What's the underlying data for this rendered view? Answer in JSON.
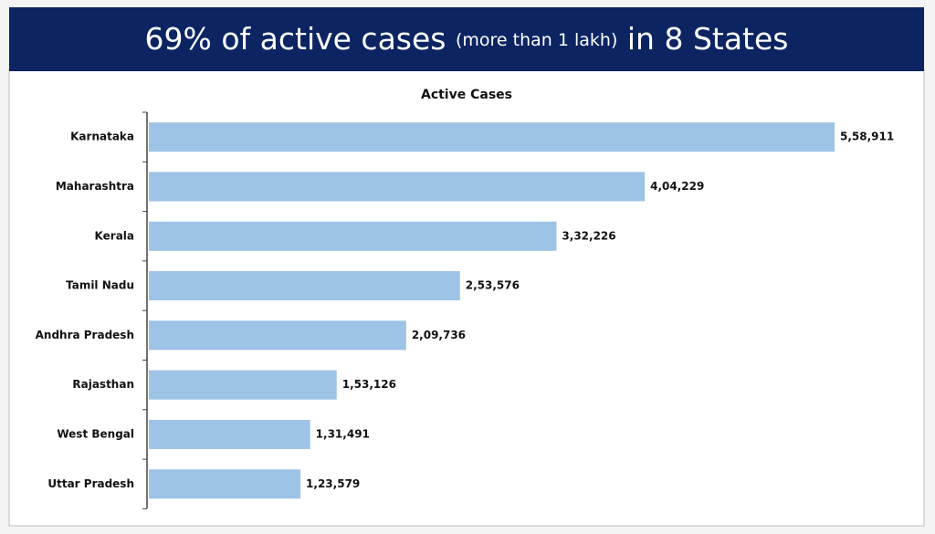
{
  "banner": {
    "title": "69% of active cases",
    "title_note": "(more than 1 lakh)",
    "title_end": "in 8 States"
  },
  "chart_data": {
    "type": "bar",
    "orientation": "horizontal",
    "title": "Active Cases",
    "categories": [
      "Karnataka",
      "Maharashtra",
      "Kerala",
      "Tamil Nadu",
      "Andhra Pradesh",
      "Rajasthan",
      "West Bengal",
      "Uttar Pradesh"
    ],
    "values": [
      558911,
      404229,
      332226,
      253576,
      209736,
      153126,
      131491,
      123579
    ],
    "value_labels": [
      "5,58,911",
      "4,04,229",
      "3,32,226",
      "2,53,576",
      "2,09,736",
      "1,53,126",
      "1,31,491",
      "1,23,579"
    ],
    "color": "#9dc3e6"
  }
}
